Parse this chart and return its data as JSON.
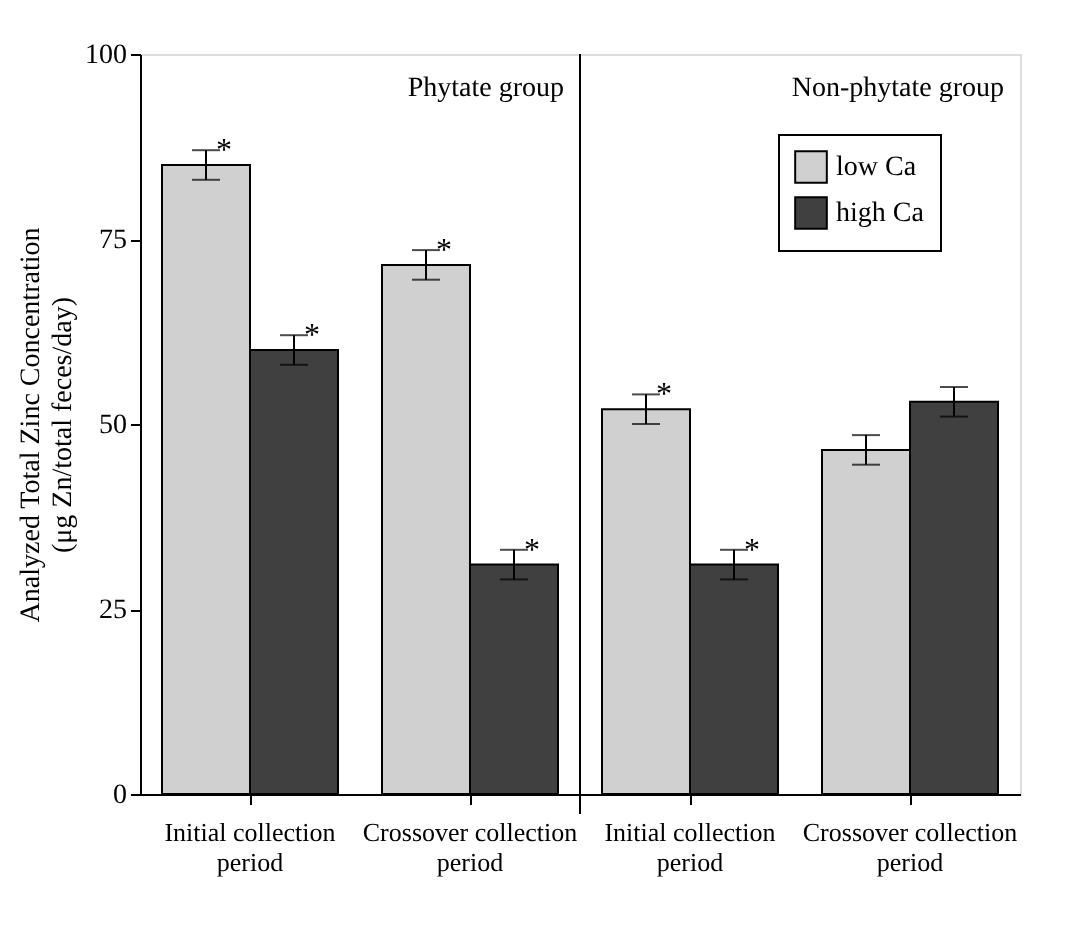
{
  "chart_data": {
    "type": "bar",
    "ylabel": "Analyzed Total Zinc Concentration\n(μg Zn/total feces/day)",
    "categories": [
      "Initial collection period",
      "Crossover collection period",
      "Initial collection period",
      "Crossover collection period"
    ],
    "series": [
      {
        "name": "low Ca",
        "color": "#d0d0d0",
        "values": [
          85,
          71.5,
          52,
          46.5
        ],
        "errors": [
          2,
          2,
          2,
          2
        ],
        "value_labels": [
          "*",
          "*",
          "*",
          null
        ]
      },
      {
        "name": "high Ca",
        "color": "#404040",
        "values": [
          60,
          31,
          31,
          53
        ],
        "errors": [
          2,
          2,
          2,
          2
        ],
        "value_labels": [
          "*",
          "*",
          "*",
          null
        ]
      }
    ],
    "ylim": [
      0,
      100
    ],
    "yticks": [
      0,
      25,
      50,
      75,
      100
    ],
    "grid": false,
    "legend": "top right",
    "annotations": [
      "Phytate group",
      "Non-phytate group"
    ]
  }
}
